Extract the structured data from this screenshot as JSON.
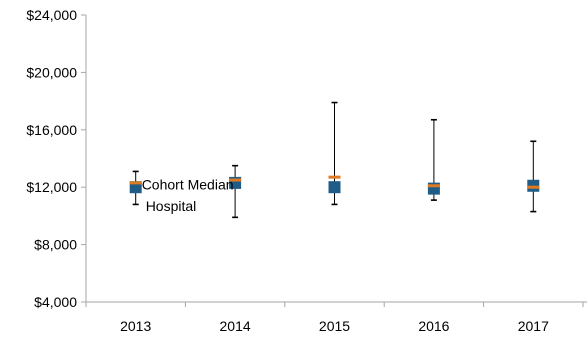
{
  "chart_data": {
    "type": "scatter",
    "x": [
      "2013",
      "2014",
      "2015",
      "2016",
      "2017"
    ],
    "ylim": [
      4000,
      24000
    ],
    "yticks": [
      4000,
      8000,
      12000,
      16000,
      20000,
      24000
    ],
    "ytick_labels": [
      "$4,000",
      "$8,000",
      "$12,000",
      "$16,000",
      "$20,000",
      "$24,000"
    ],
    "range": {
      "low": [
        10800,
        9900,
        10800,
        11100,
        10300
      ],
      "high": [
        13100,
        13500,
        17900,
        16700,
        15200
      ]
    },
    "series": [
      {
        "name": "Cohort Median",
        "color": "#E07A20",
        "marker": "dash",
        "values": [
          12300,
          12500,
          12700,
          12100,
          12000
        ]
      },
      {
        "name": "Hospital",
        "color": "#1F5C87",
        "marker": "square",
        "values": [
          12000,
          12300,
          12000,
          11900,
          12100
        ]
      }
    ],
    "annotations": [
      {
        "text": "Cohort Median",
        "x": "2013",
        "y": 12200
      },
      {
        "text": "Hospital",
        "x": "2013",
        "y": 10700
      }
    ],
    "grid": false,
    "legend": "none"
  }
}
